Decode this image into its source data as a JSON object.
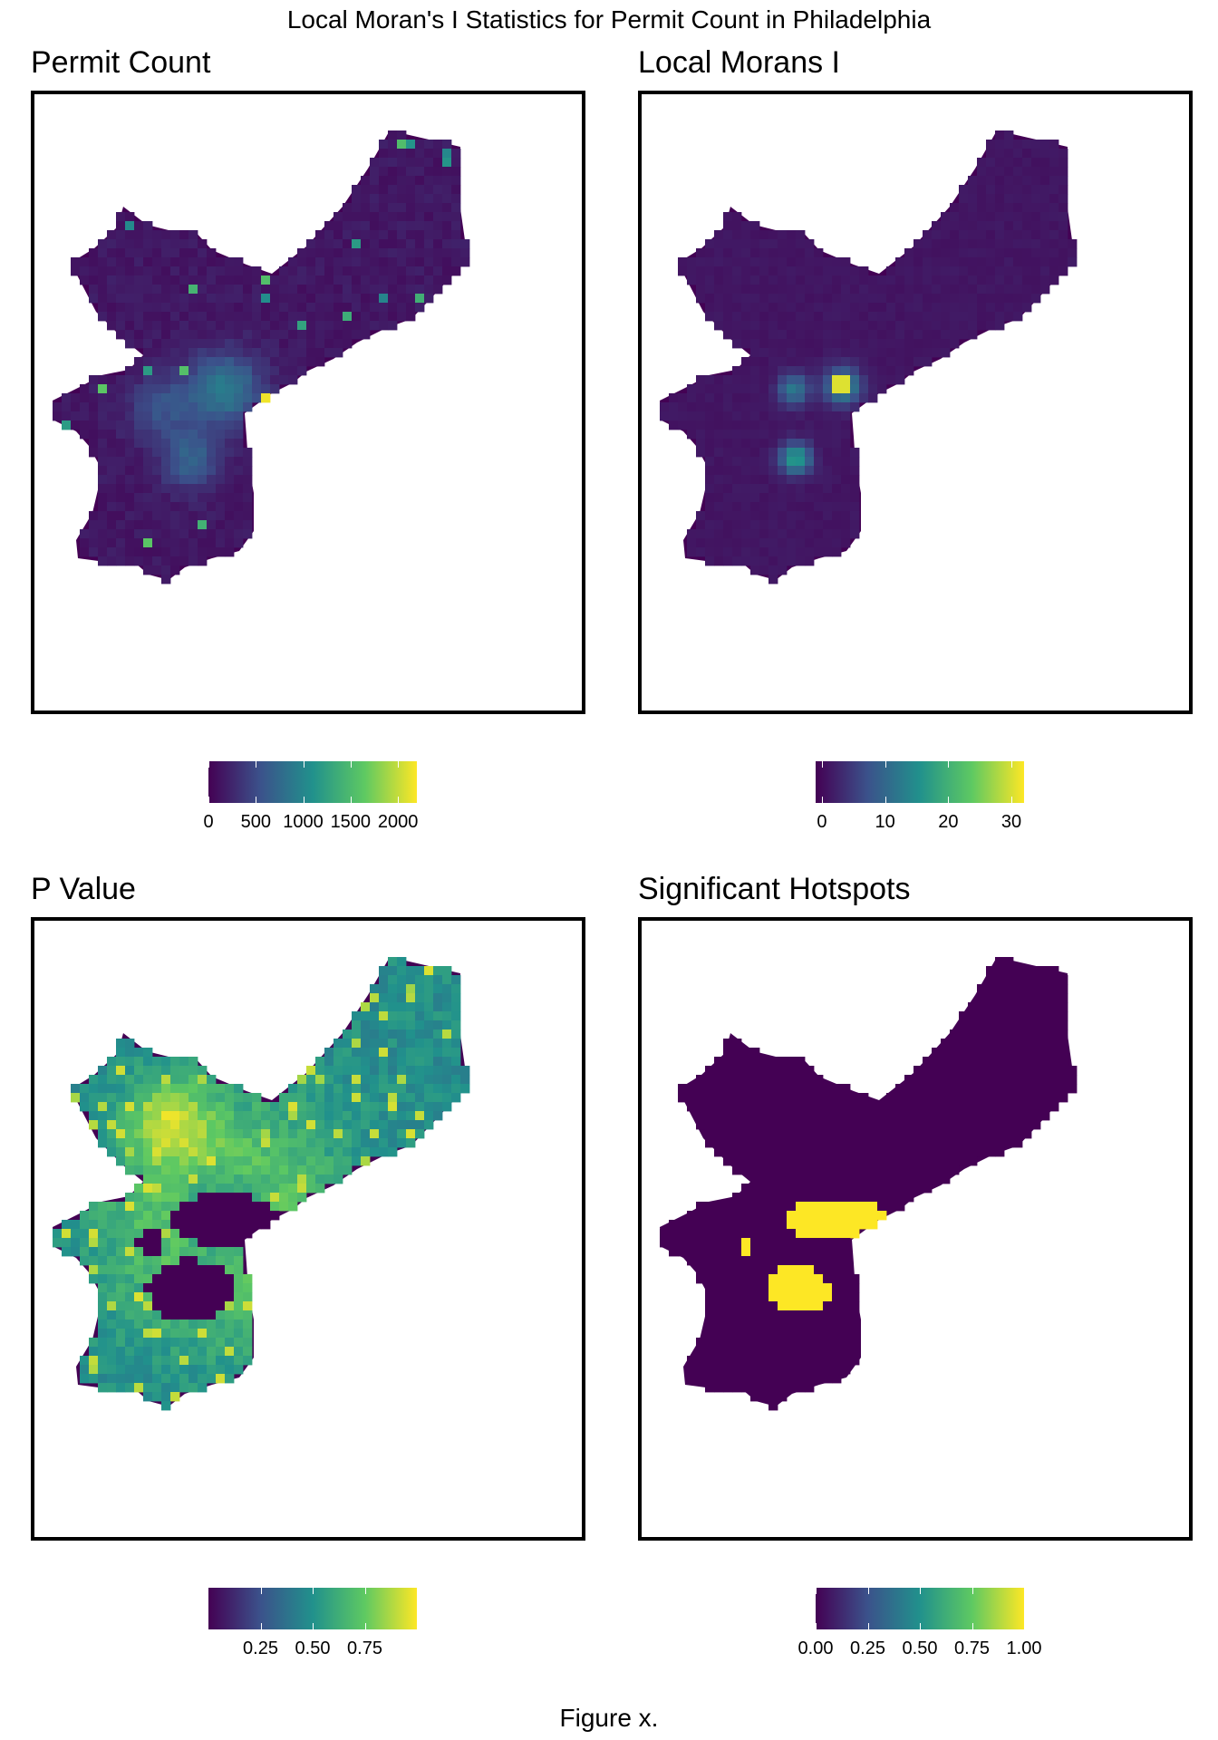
{
  "figure": {
    "title": "Local Moran's I Statistics for Permit Count in Philadelphia",
    "caption": "Figure x."
  },
  "colors": {
    "viridis": [
      "#440154",
      "#3b528b",
      "#21918c",
      "#5ec962",
      "#fde725"
    ],
    "background": "#440154",
    "frame": "#000000"
  },
  "panels": [
    {
      "title": "Permit Count",
      "style": "count",
      "legend": {
        "min": 0,
        "max": 2200,
        "ticks": [
          0,
          500,
          1000,
          1500,
          2000
        ],
        "labels": [
          "0",
          "500",
          "1000",
          "1500",
          "2000"
        ]
      }
    },
    {
      "title": "Local Morans I",
      "style": "morans",
      "legend": {
        "min": -1,
        "max": 32,
        "ticks": [
          0,
          10,
          20,
          30
        ],
        "labels": [
          "0",
          "10",
          "20",
          "30"
        ]
      }
    },
    {
      "title": "P Value",
      "style": "pvalue",
      "legend": {
        "min": 0,
        "max": 1,
        "ticks": [
          0.25,
          0.5,
          0.75
        ],
        "labels": [
          "0.25",
          "0.50",
          "0.75"
        ]
      }
    },
    {
      "title": "Significant Hotspots",
      "style": "hotspot",
      "legend": {
        "min": 0,
        "max": 1,
        "ticks": [
          0,
          0.25,
          0.5,
          0.75,
          1
        ],
        "labels": [
          "0.00",
          "0.25",
          "0.50",
          "0.75",
          "1.00"
        ]
      }
    }
  ]
}
